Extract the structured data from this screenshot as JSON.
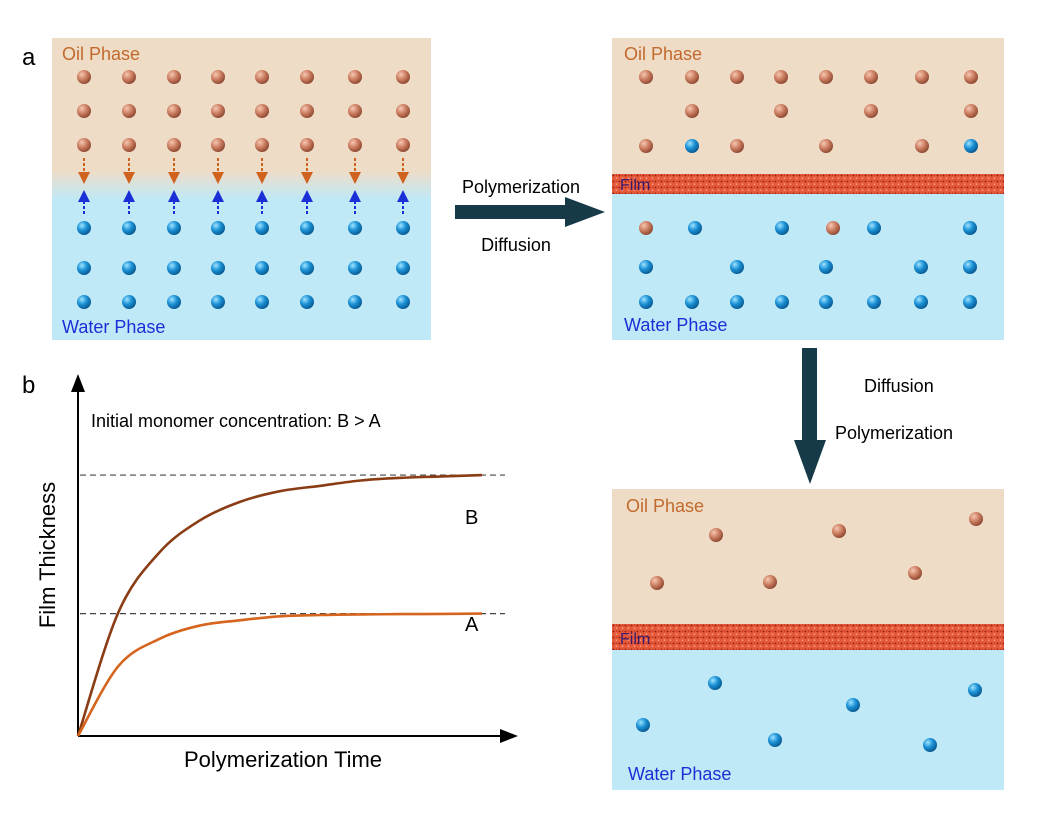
{
  "panel_a": {
    "label": "a",
    "oil_label": "Oil Phase",
    "water_label": "Water Phase",
    "film_label": "Film",
    "step1_labels": [
      "Polymerization",
      "Diffusion"
    ],
    "step2_labels": [
      "Diffusion",
      "Polymerization"
    ]
  },
  "panel_b": {
    "label": "b",
    "annotation": "Initial monomer concentration: B > A",
    "curve_labels": [
      "B",
      "A"
    ]
  },
  "colors": {
    "oil_bg": "#efdcc6",
    "water_bg": "#bfe9f7",
    "oil_monomer": "#c97a5e",
    "water_monomer": "#1b92d6",
    "film": "#e5593a",
    "arrow": "#173a48",
    "oil_text": "#c26a2e",
    "water_text": "#1a2fd6",
    "curve_B": "#8a3c14",
    "curve_A": "#d5641e"
  },
  "chart_data": {
    "type": "line",
    "xlabel": "Polymerization Time",
    "ylabel": "Film Thickness",
    "series": [
      {
        "name": "B",
        "values": [
          0,
          0.46,
          0.68,
          0.8,
          0.87,
          0.91,
          0.93,
          0.95,
          0.96,
          0.965,
          0.97
        ]
      },
      {
        "name": "A",
        "values": [
          0,
          0.26,
          0.36,
          0.41,
          0.43,
          0.445,
          0.45,
          0.452,
          0.453,
          0.454,
          0.455
        ]
      }
    ],
    "x": [
      0,
      0.1,
      0.2,
      0.3,
      0.4,
      0.5,
      0.6,
      0.7,
      0.8,
      0.9,
      1.0
    ],
    "asymptotes": {
      "B": 0.97,
      "A": 0.455
    },
    "grid": false,
    "tick_labels": false
  }
}
